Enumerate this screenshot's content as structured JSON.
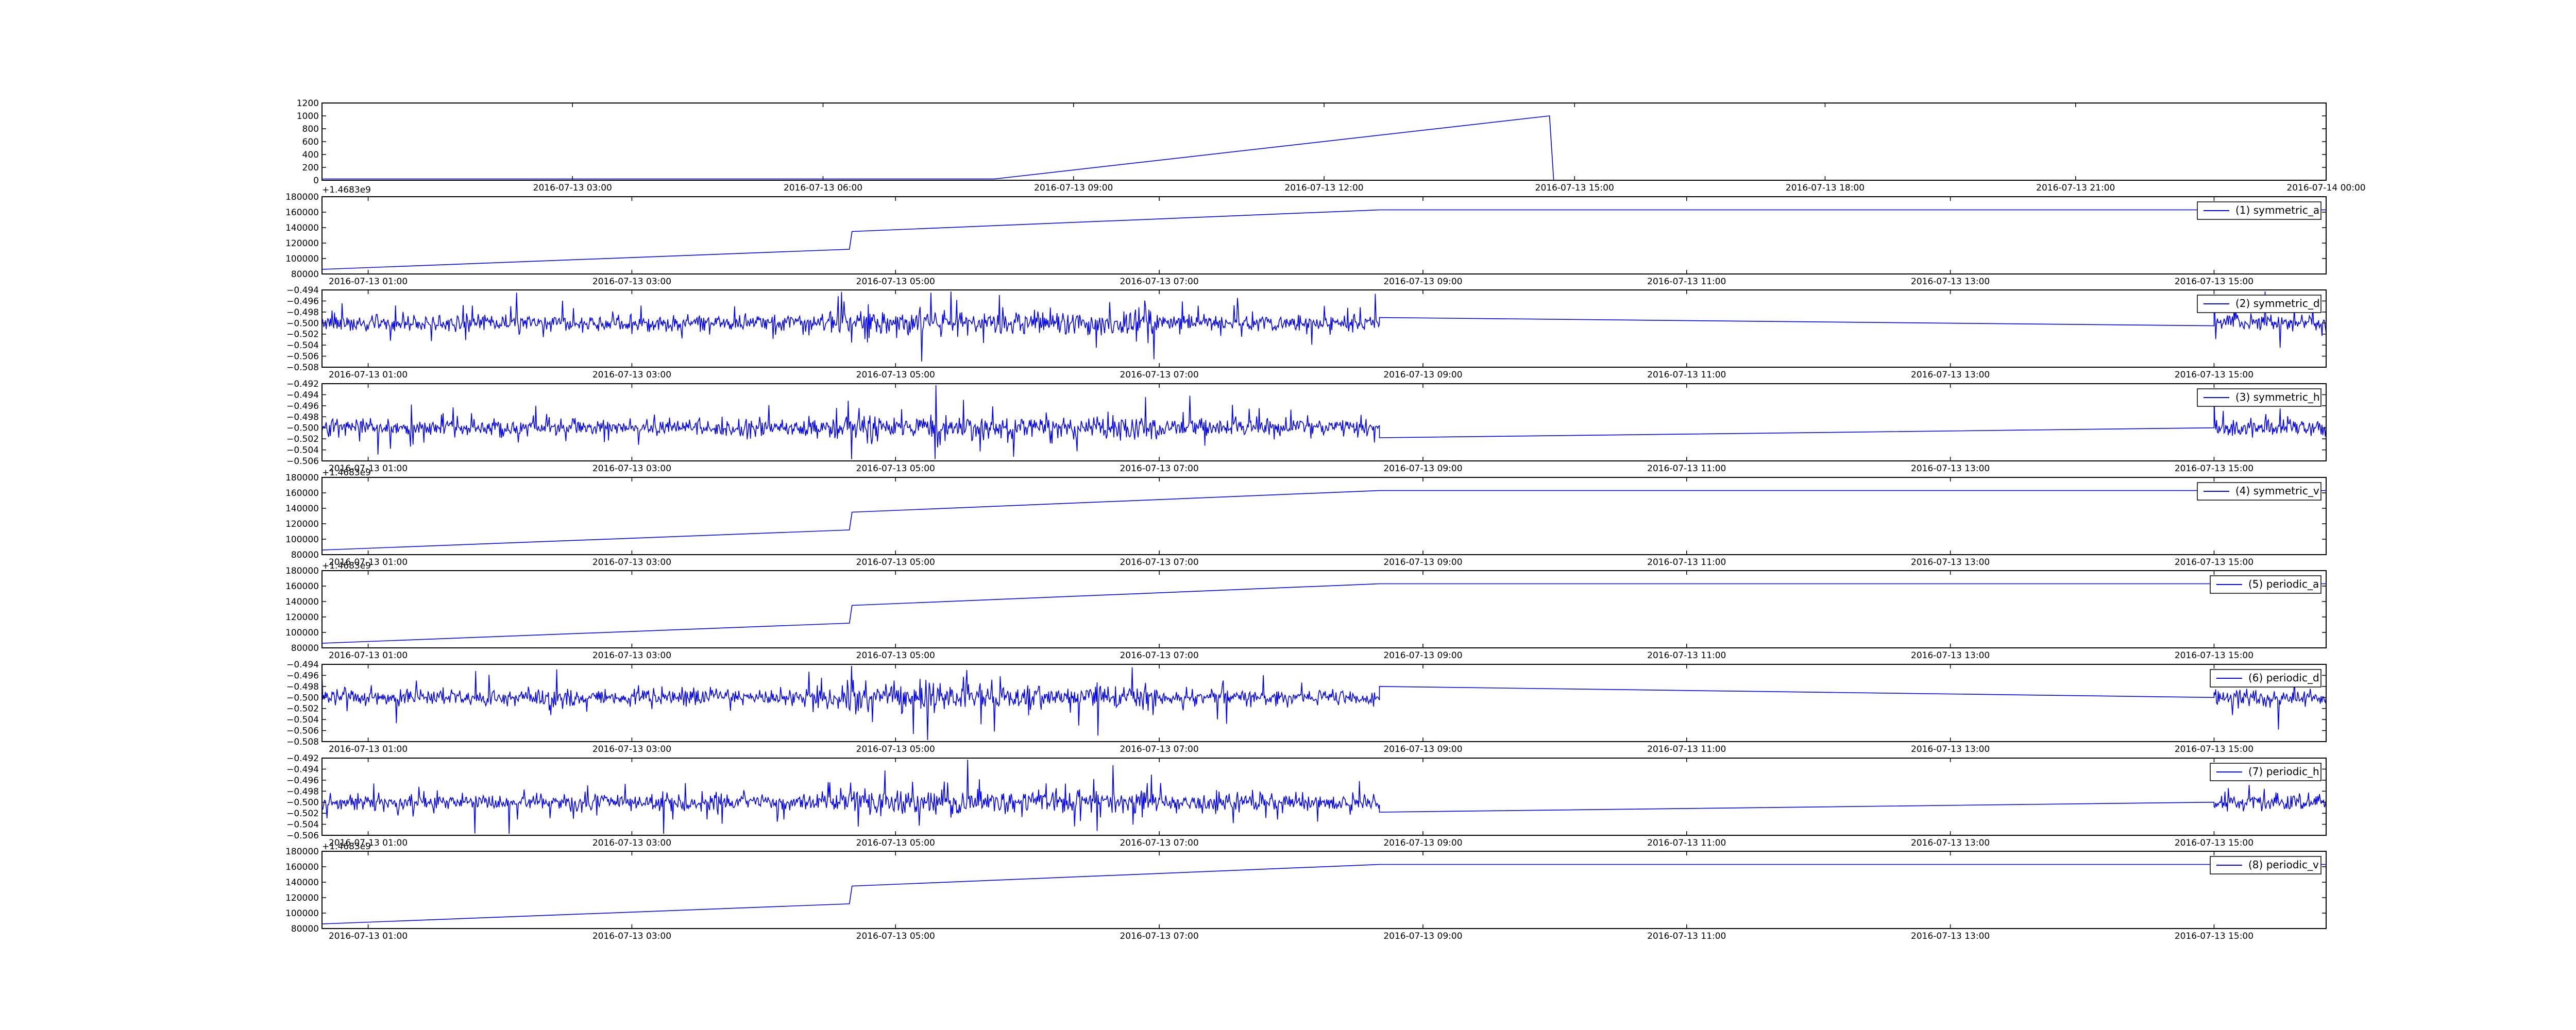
{
  "figure": {
    "background": "#ffffff",
    "line_color": "#0000ff",
    "axes_color": "#000000"
  },
  "chart_data": [
    {
      "type": "line",
      "series_id": "top",
      "ylim": [
        0,
        1200
      ],
      "yticks": [
        "1200",
        "1000",
        "800",
        "600",
        "400",
        "200",
        "0"
      ],
      "xlim": [
        0,
        24
      ],
      "xticks": [
        {
          "x": 3,
          "label": "2016-07-13 03:00"
        },
        {
          "x": 6,
          "label": "2016-07-13 06:00"
        },
        {
          "x": 9,
          "label": "2016-07-13 09:00"
        },
        {
          "x": 12,
          "label": "2016-07-13 12:00"
        },
        {
          "x": 15,
          "label": "2016-07-13 15:00"
        },
        {
          "x": 18,
          "label": "2016-07-13 18:00"
        },
        {
          "x": 21,
          "label": "2016-07-13 21:00"
        },
        {
          "x": 24,
          "label": "2016-07-14 00:00"
        }
      ],
      "offset_label": "+1.4683e9",
      "series": [
        {
          "x": [
            0,
            8.05,
            14.7,
            14.75,
            24
          ],
          "values": [
            20,
            20,
            1000,
            0,
            0
          ]
        }
      ]
    },
    {
      "type": "line",
      "series_id": "sym_a",
      "ylim": [
        80000,
        180000
      ],
      "yticks": [
        "180000",
        "160000",
        "140000",
        "120000",
        "100000",
        "80000"
      ],
      "xlim": [
        0.65,
        15.85
      ],
      "xticks_ref": "mid",
      "legend": "(1) symmetric_a",
      "series": [
        {
          "x": [
            0.65,
            4.65,
            4.67,
            8.67,
            15.85
          ],
          "values": [
            86000,
            112000,
            135000,
            163000,
            163000
          ]
        }
      ]
    },
    {
      "type": "line",
      "series_id": "sym_d",
      "noise_seed": 11,
      "ylim": [
        -0.508,
        -0.494
      ],
      "yticks": [
        "−0.494",
        "−0.496",
        "−0.498",
        "−0.500",
        "−0.502",
        "−0.504",
        "−0.506",
        "−0.508"
      ],
      "xlim": [
        0.65,
        15.85
      ],
      "xticks_ref": "mid",
      "legend": "(2) symmetric_d",
      "series": [
        {
          "noisy_segments": [
            [
              0.65,
              8.67
            ],
            [
              15.0,
              15.85
            ]
          ],
          "bridge": [
            [
              8.67,
              -0.499
            ],
            [
              15.0,
              -0.5005
            ]
          ]
        }
      ]
    },
    {
      "type": "line",
      "series_id": "sym_h",
      "noise_seed": 23,
      "ylim": [
        -0.506,
        -0.492
      ],
      "yticks": [
        "−0.492",
        "−0.494",
        "−0.496",
        "−0.498",
        "−0.500",
        "−0.502",
        "−0.504",
        "−0.506"
      ],
      "xlim": [
        0.65,
        15.85
      ],
      "xticks_ref": "mid",
      "legend": "(3) symmetric_h",
      "series": [
        {
          "noisy_segments": [
            [
              0.65,
              8.67
            ],
            [
              15.0,
              15.85
            ]
          ],
          "bridge": [
            [
              8.67,
              -0.5018
            ],
            [
              15.0,
              -0.5
            ]
          ]
        }
      ]
    },
    {
      "type": "line",
      "series_id": "sym_v",
      "ylim": [
        80000,
        180000
      ],
      "yticks": [
        "180000",
        "160000",
        "140000",
        "120000",
        "100000",
        "80000"
      ],
      "xlim": [
        0.65,
        15.85
      ],
      "xticks_ref": "mid",
      "offset_label": "+1.4683e9",
      "legend": "(4) symmetric_v",
      "series": [
        {
          "x": [
            0.65,
            4.65,
            4.67,
            8.67,
            15.85
          ],
          "values": [
            86000,
            112000,
            135000,
            163000,
            163000
          ]
        }
      ]
    },
    {
      "type": "line",
      "series_id": "per_a",
      "ylim": [
        80000,
        180000
      ],
      "yticks": [
        "180000",
        "160000",
        "140000",
        "120000",
        "100000",
        "80000"
      ],
      "xlim": [
        0.65,
        15.85
      ],
      "xticks_ref": "mid",
      "offset_label": "+1.4683e9",
      "legend": "(5) periodic_a",
      "series": [
        {
          "x": [
            0.65,
            4.65,
            4.67,
            8.67,
            15.85
          ],
          "values": [
            86000,
            112000,
            135000,
            163000,
            163000
          ]
        }
      ]
    },
    {
      "type": "line",
      "series_id": "per_d",
      "noise_seed": 37,
      "ylim": [
        -0.508,
        -0.494
      ],
      "yticks": [
        "−0.494",
        "−0.496",
        "−0.498",
        "−0.500",
        "−0.502",
        "−0.504",
        "−0.506",
        "−0.508"
      ],
      "xlim": [
        0.65,
        15.85
      ],
      "xticks_ref": "mid",
      "legend": "(6) periodic_d",
      "series": [
        {
          "noisy_segments": [
            [
              0.65,
              8.67
            ],
            [
              15.0,
              15.85
            ]
          ],
          "bridge": [
            [
              8.67,
              -0.498
            ],
            [
              15.0,
              -0.5
            ]
          ]
        }
      ]
    },
    {
      "type": "line",
      "series_id": "per_h",
      "noise_seed": 53,
      "ylim": [
        -0.506,
        -0.492
      ],
      "yticks": [
        "−0.492",
        "−0.494",
        "−0.496",
        "−0.498",
        "−0.500",
        "−0.502",
        "−0.504",
        "−0.506"
      ],
      "xlim": [
        0.65,
        15.85
      ],
      "xticks_ref": "mid",
      "legend": "(7) periodic_h",
      "series": [
        {
          "noisy_segments": [
            [
              0.65,
              8.67
            ],
            [
              15.0,
              15.85
            ]
          ],
          "bridge": [
            [
              8.67,
              -0.5018
            ],
            [
              15.0,
              -0.5
            ]
          ]
        }
      ]
    },
    {
      "type": "line",
      "series_id": "per_v",
      "ylim": [
        80000,
        180000
      ],
      "yticks": [
        "180000",
        "160000",
        "140000",
        "120000",
        "100000",
        "80000"
      ],
      "xlim": [
        0.65,
        15.85
      ],
      "xticks_ref": "mid",
      "offset_label": "+1.4683e9",
      "legend": "(8) periodic_v",
      "series": [
        {
          "x": [
            0.65,
            4.65,
            4.67,
            8.67,
            15.85
          ],
          "values": [
            86000,
            112000,
            135000,
            163000,
            163000
          ]
        }
      ]
    }
  ],
  "mid_xticks": [
    {
      "x": 1,
      "label": "2016-07-13 01:00"
    },
    {
      "x": 3,
      "label": "2016-07-13 03:00"
    },
    {
      "x": 5,
      "label": "2016-07-13 05:00"
    },
    {
      "x": 7,
      "label": "2016-07-13 07:00"
    },
    {
      "x": 9,
      "label": "2016-07-13 09:00"
    },
    {
      "x": 11,
      "label": "2016-07-13 11:00"
    },
    {
      "x": 13,
      "label": "2016-07-13 13:00"
    },
    {
      "x": 15,
      "label": "2016-07-13 15:00"
    }
  ]
}
